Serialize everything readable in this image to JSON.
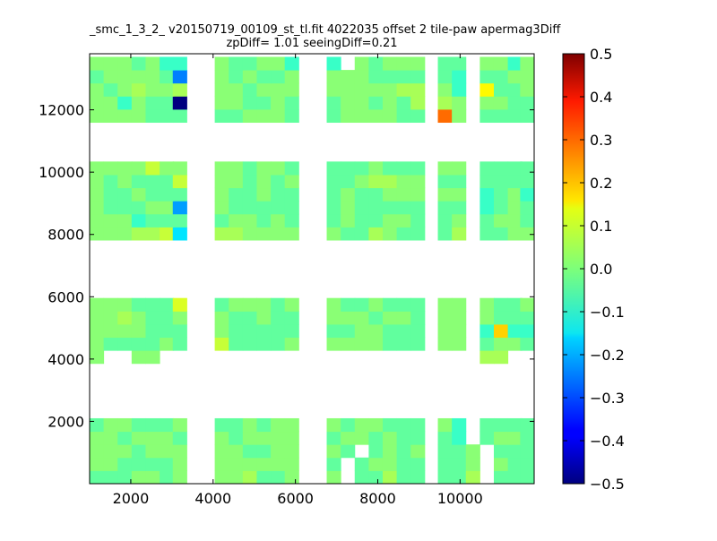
{
  "chart_data": {
    "type": "heatmap",
    "title_lines": [
      "_smc_1_3_2_ v20150719_00109_st_tl.fit 4022035 offset 2 tile-paw apermag3Diff",
      "zpDiff= 1.01 seeingDiff=0.21"
    ],
    "xlim": [
      1000,
      11800
    ],
    "ylim": [
      0,
      13800
    ],
    "x_ticks": [
      2000,
      4000,
      6000,
      8000,
      10000
    ],
    "x_tick_labels": [
      "2000",
      "4000",
      "6000",
      "8000",
      "10000"
    ],
    "y_ticks": [
      2000,
      4000,
      6000,
      8000,
      10000,
      12000
    ],
    "y_tick_labels": [
      "2000",
      "4000",
      "6000",
      "8000",
      "10000",
      "12000"
    ],
    "cell_size": [
      340,
      420
    ],
    "colorbar": {
      "colormap": "jet",
      "range": [
        -0.5,
        0.5
      ],
      "ticks": [
        0.5,
        0.4,
        0.3,
        0.2,
        0.1,
        0.0,
        -0.1,
        -0.2,
        -0.3,
        -0.4,
        -0.5
      ],
      "tick_labels": [
        "0.5",
        "0.4",
        "0.3",
        "0.2",
        "0.1",
        "0.0",
        "−0.1",
        "−0.2",
        "−0.3",
        "−0.4",
        "−0.5"
      ]
    },
    "column_x": [
      1000,
      1340,
      1680,
      2020,
      2360,
      2700,
      3020,
      3700,
      4040,
      4380,
      4720,
      5060,
      5400,
      5740,
      6760,
      7100,
      7440,
      7780,
      8120,
      8460,
      8800,
      9460,
      9800,
      10140,
      10480,
      10820,
      11160,
      11460
    ],
    "row_y": [
      0,
      420,
      840,
      1260,
      1680,
      3860,
      4280,
      4700,
      5120,
      5540,
      7820,
      8240,
      8660,
      9080,
      9500,
      9920,
      11600,
      12020,
      12440,
      12860,
      13280
    ],
    "grid": [
      "3332311.3223311.3233322.33132",
      "2333322.323223333222221.22332",
      "3234334.332333333334431.22232",
      "3313222.332232233232443.33223",
      "3333222.223332233332223.22224",
      "3333533.332332222322233.22223",
      "3232225.332323223443322.22222",
      "3223222.322322232233333.12312",
      "3222333.322222232222222.12322",
      "3331222.233232232233223.23323",
      "3334455.443333322432224.22332",
      "3332226.233323322322233.32234",
      "3343223.322322333233233.32223",
      "3333222.322222223322233.11112",
      "3222232.522223333322233.23323",
      "3..33...................44....",
      "2332223.223233323322231.22222",
      "3323332.323333233232221.23323",
      "3332333.33223332.2323223.22253",
      "3322223.3333332.23322223.32222",
      "2223323.3342233.22422224.22244"
    ],
    "special_cells": [
      {
        "row": 17,
        "col": 6,
        "value": -0.5
      },
      {
        "row": 19,
        "col": 6,
        "value": -0.25
      },
      {
        "row": 16,
        "col": 21,
        "value": 0.27
      },
      {
        "row": 12,
        "col": 6,
        "value": -0.22
      },
      {
        "row": 10,
        "col": 6,
        "value": -0.15
      },
      {
        "row": 18,
        "col": 24,
        "value": 0.13
      },
      {
        "row": 7,
        "col": 25,
        "value": 0.17
      }
    ]
  }
}
